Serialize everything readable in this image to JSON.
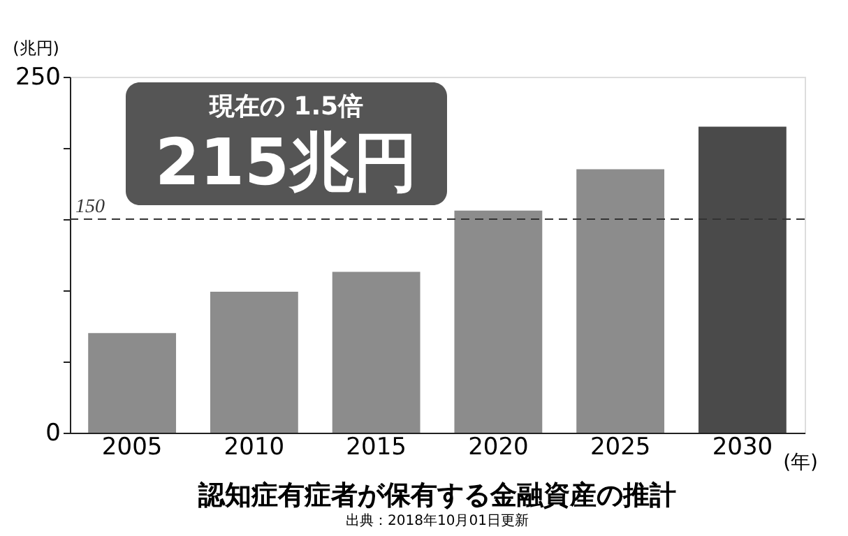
{
  "chart_data": {
    "type": "bar",
    "title": "認知症有症者が保有する金融資産の推計",
    "xlabel": "(年)",
    "ylabel": "(兆円)",
    "categories": [
      "2005",
      "2010",
      "2015",
      "2020",
      "2025",
      "2030"
    ],
    "values": [
      70,
      99,
      113,
      156,
      185,
      215
    ],
    "colors": [
      "#8c8c8c",
      "#8c8c8c",
      "#8c8c8c",
      "#8c8c8c",
      "#8c8c8c",
      "#4a4a4a"
    ],
    "ylim": [
      0,
      250
    ],
    "yticks": [
      0,
      {
        "value": 50,
        "label": null
      },
      {
        "value": 100,
        "label": null
      },
      {
        "value": 150,
        "label": null
      },
      {
        "value": 200,
        "label": null
      },
      250
    ],
    "ref_lines": [
      {
        "axis": "y",
        "value": 150,
        "label": "150",
        "line_style": "dashed",
        "color": "#333333"
      }
    ],
    "annotations": [
      "現在の 1.5倍",
      "215兆円",
      "出典：2018年10月01日更新"
    ],
    "grid": false
  }
}
